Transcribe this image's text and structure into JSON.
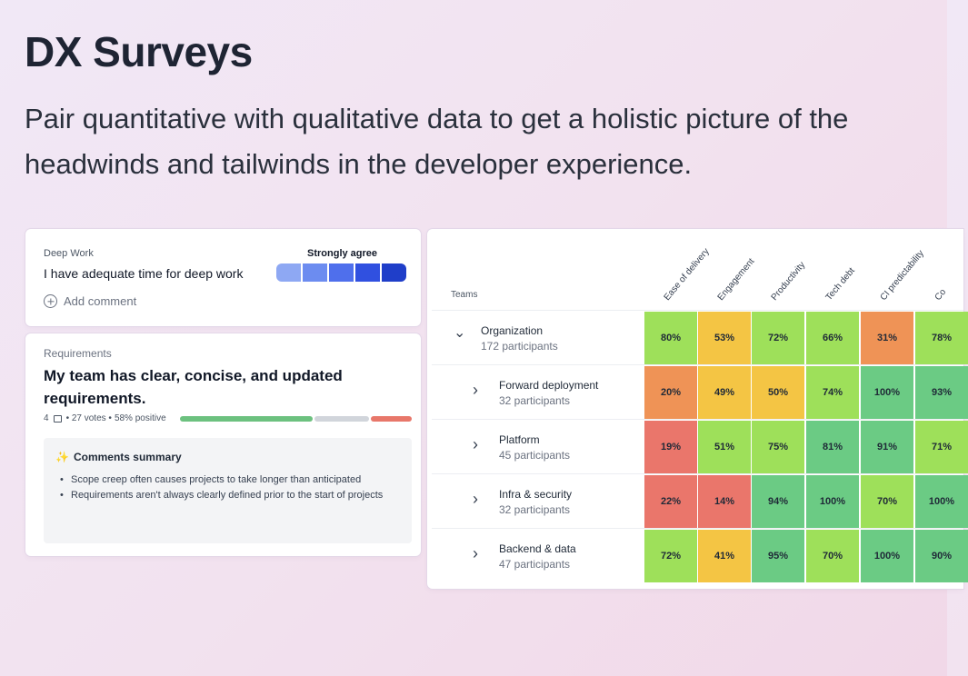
{
  "hero": {
    "title": "DX Surveys",
    "subtitle": "Pair quantitative with qualitative data to get a holistic picture of the headwinds and tailwinds in the developer experience."
  },
  "deep_work_card": {
    "label": "Deep Work",
    "question": "I have adequate time for deep work",
    "scale_label": "Strongly agree",
    "scale_colors": [
      "#8ea8f3",
      "#6c8cf0",
      "#4f6fec",
      "#3050e0",
      "#1f3ec9"
    ],
    "add_comment": "Add comment"
  },
  "requirements_card": {
    "label": "Requirements",
    "question": "My team has clear, concise, and updated requirements.",
    "comment_count": "4",
    "votes": "• 27 votes •",
    "positive": "58% positive",
    "sentiment": {
      "positive": 0.58,
      "neutral": 0.24,
      "negative": 0.18
    },
    "sentiment_colors": {
      "positive": "#6cc17f",
      "neutral": "#d1d5db",
      "negative": "#e8776a"
    },
    "summary_title": "Comments summary",
    "summary_items": [
      "Scope creep often causes projects to take longer than anticipated",
      "Requirements aren't always clearly defined prior to the start of projects"
    ]
  },
  "table": {
    "teams_header": "Teams",
    "columns": [
      "Ease of delivery",
      "Engagement",
      "Productivity",
      "Tech debt",
      "CI predictability",
      "Co"
    ],
    "rows": [
      {
        "name": "Organization",
        "participants": "172 participants",
        "expanded": true,
        "cells": [
          [
            "80%",
            "#9ee05a"
          ],
          [
            "53%",
            "#f4c544"
          ],
          [
            "72%",
            "#9ee05a"
          ],
          [
            "66%",
            "#9ee05a"
          ],
          [
            "31%",
            "#ef9356"
          ],
          [
            "78%",
            "#9ee05a"
          ]
        ]
      },
      {
        "name": "Forward deployment",
        "participants": "32 participants",
        "expanded": false,
        "cells": [
          [
            "20%",
            "#ef9356"
          ],
          [
            "49%",
            "#f4c544"
          ],
          [
            "50%",
            "#f4c544"
          ],
          [
            "74%",
            "#9ee05a"
          ],
          [
            "100%",
            "#6bcb84"
          ],
          [
            "93%",
            "#6bcb84"
          ]
        ]
      },
      {
        "name": "Platform",
        "participants": "45 participants",
        "expanded": false,
        "cells": [
          [
            "19%",
            "#ea766b"
          ],
          [
            "51%",
            "#9ee05a"
          ],
          [
            "75%",
            "#9ee05a"
          ],
          [
            "81%",
            "#6bcb84"
          ],
          [
            "91%",
            "#6bcb84"
          ],
          [
            "71%",
            "#9ee05a"
          ]
        ]
      },
      {
        "name": "Infra & security",
        "participants": "32 participants",
        "expanded": false,
        "cells": [
          [
            "22%",
            "#ea766b"
          ],
          [
            "14%",
            "#ea766b"
          ],
          [
            "94%",
            "#6bcb84"
          ],
          [
            "100%",
            "#6bcb84"
          ],
          [
            "70%",
            "#9ee05a"
          ],
          [
            "100%",
            "#6bcb84"
          ]
        ]
      },
      {
        "name": "Backend & data",
        "participants": "47 participants",
        "expanded": false,
        "cells": [
          [
            "72%",
            "#9ee05a"
          ],
          [
            "41%",
            "#f4c544"
          ],
          [
            "95%",
            "#6bcb84"
          ],
          [
            "70%",
            "#9ee05a"
          ],
          [
            "100%",
            "#6bcb84"
          ],
          [
            "90%",
            "#6bcb84"
          ]
        ]
      }
    ]
  },
  "icons": {
    "add_comment": "circle-plus-icon",
    "comment": "comment-icon",
    "sparkle": "sparkle-icon",
    "expand": "chevron-down-icon",
    "collapse": "chevron-right-icon"
  }
}
